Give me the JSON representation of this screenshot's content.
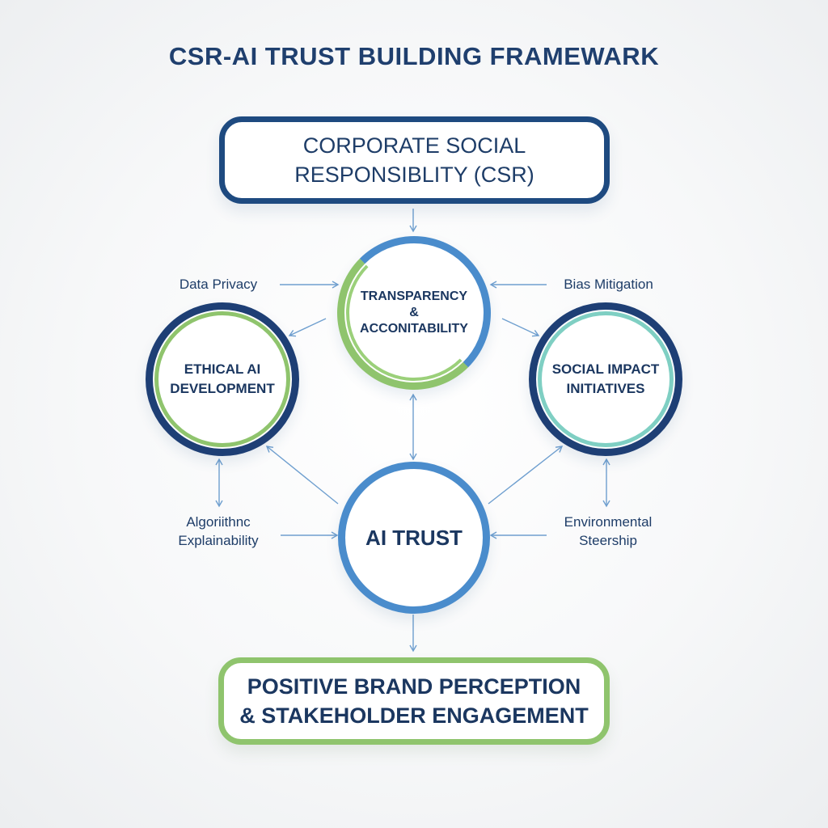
{
  "title": "CSR-AI TRUST BUILDING FRAMEWARK",
  "csr_box": {
    "line1": "CORPORATE SOCIAL",
    "line2": "RESPONSIBLITY (CSR)"
  },
  "circles": {
    "transparency": {
      "line1": "TRANSPARENCY",
      "line2": "&",
      "line3": "ACCONITABILITY"
    },
    "ethical": {
      "line1": "ETHICAL AI",
      "line2": "DEVELOPMENT"
    },
    "social": {
      "line1": "SOCIAL IMPACT",
      "line2": "INITIATIVES"
    },
    "trust": {
      "line1": "AI TRUST"
    }
  },
  "labels": {
    "privacy": "Data Privacy",
    "bias": "Bias Mitigation",
    "algo_line1": "Algoriithnc",
    "algo_line2": "Explainability",
    "env_line1": "Environmental",
    "env_line2": "Steership"
  },
  "outcome_box": {
    "line1": "POSITIVE BRAND PERCEPTION",
    "line2": "& STAKEHOLDER ENGAGEMENT"
  },
  "colors": {
    "navy": "#1e4a80",
    "blue": "#4a8ccc",
    "green": "#8fc46d",
    "teal": "#7fcfc3",
    "arrow": "#6f9fcf"
  }
}
